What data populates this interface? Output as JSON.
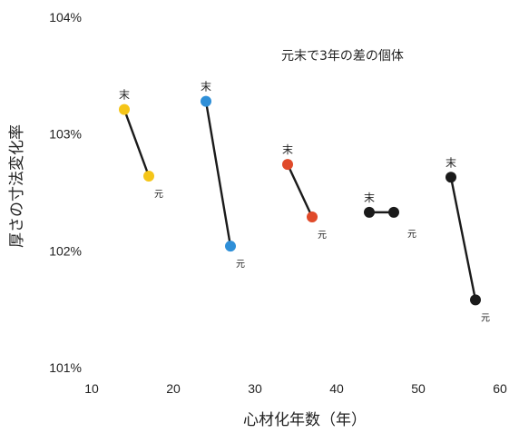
{
  "chart_data": {
    "type": "scatter",
    "title": "",
    "annotation": "元末で3年の差の個体",
    "xlabel": "心材化年数（年）",
    "ylabel": "厚さの寸法変化率",
    "xlim": [
      10,
      60
    ],
    "ylim": [
      101,
      104
    ],
    "xticks": [
      "10",
      "20",
      "30",
      "40",
      "50",
      "60"
    ],
    "yticks": [
      "101%",
      "102%",
      "103%",
      "104%"
    ],
    "grid": false,
    "legend": "none",
    "pairs": [
      {
        "color": "#f5c518",
        "top": {
          "label": "末",
          "x": 14,
          "y": 103.21
        },
        "bottom": {
          "label": "元",
          "x": 17,
          "y": 102.64
        }
      },
      {
        "color": "#2f8fd8",
        "top": {
          "label": "末",
          "x": 24,
          "y": 103.28
        },
        "bottom": {
          "label": "元",
          "x": 27,
          "y": 102.04
        }
      },
      {
        "color": "#e04a2a",
        "top": {
          "label": "末",
          "x": 34,
          "y": 102.74
        },
        "bottom": {
          "label": "元",
          "x": 37,
          "y": 102.29
        }
      },
      {
        "color": "#1a1a1a",
        "top": {
          "label": "末",
          "x": 44,
          "y": 102.33
        },
        "bottom": {
          "label": "元",
          "x": 47,
          "y": 102.33
        }
      },
      {
        "color": "#1a1a1a",
        "top": {
          "label": "末",
          "x": 54,
          "y": 102.63
        },
        "bottom": {
          "label": "元",
          "x": 57,
          "y": 101.58
        }
      }
    ]
  }
}
